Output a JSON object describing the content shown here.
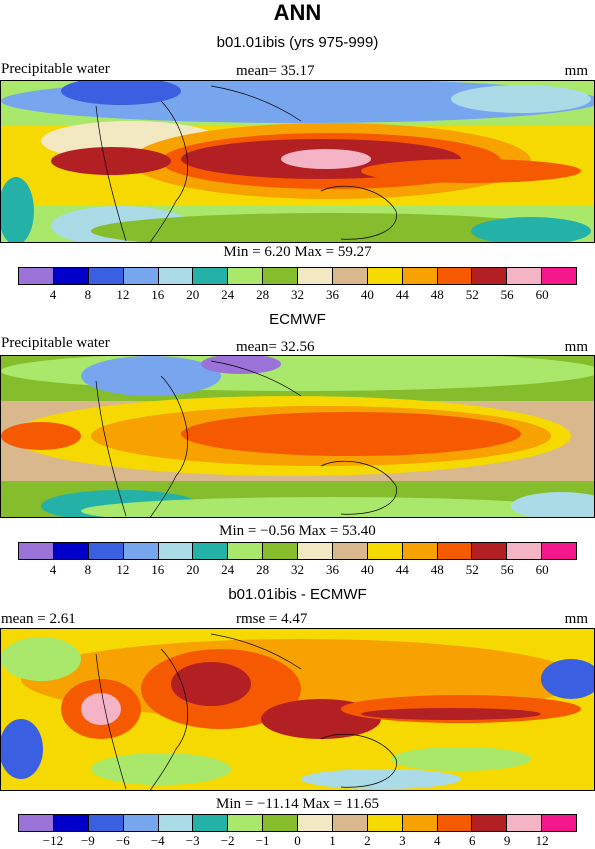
{
  "title": "ANN",
  "panels": [
    {
      "header": "b01.01ibis (yrs 975-999)",
      "left_label": "Precipitable water",
      "center_label": "mean=  35.17",
      "right_label": "mm",
      "stats": "Min =    6.20  Max =   59.27",
      "colorbar": {
        "colors": [
          "#9b73d8",
          "#0000c8",
          "#3a5fe0",
          "#78a6ee",
          "#aadbe6",
          "#24b2a8",
          "#a9e86a",
          "#85bd2c",
          "#f2e8c2",
          "#d8b88c",
          "#f5d900",
          "#f7a200",
          "#f55a00",
          "#b32024",
          "#f5b4c6",
          "#f5188c"
        ],
        "ticks": [
          "4",
          "8",
          "12",
          "16",
          "20",
          "24",
          "28",
          "32",
          "36",
          "40",
          "44",
          "48",
          "52",
          "56",
          "60"
        ]
      }
    },
    {
      "header": "ECMWF",
      "left_label": "Precipitable water",
      "center_label": "mean=  32.56",
      "right_label": "mm",
      "stats": "Min =   −0.56  Max =   53.40",
      "colorbar": {
        "colors": [
          "#9b73d8",
          "#0000c8",
          "#3a5fe0",
          "#78a6ee",
          "#aadbe6",
          "#24b2a8",
          "#a9e86a",
          "#85bd2c",
          "#f2e8c2",
          "#d8b88c",
          "#f5d900",
          "#f7a200",
          "#f55a00",
          "#b32024",
          "#f5b4c6",
          "#f5188c"
        ],
        "ticks": [
          "4",
          "8",
          "12",
          "16",
          "20",
          "24",
          "28",
          "32",
          "36",
          "40",
          "44",
          "48",
          "52",
          "56",
          "60"
        ]
      }
    },
    {
      "header": "b01.01ibis - ECMWF",
      "left_label": "mean =    2.61",
      "center_label": "rmse =    4.47",
      "right_label": "mm",
      "stats": "Min = −11.14  Max =   11.65",
      "colorbar": {
        "colors": [
          "#9b73d8",
          "#0000c8",
          "#3a5fe0",
          "#78a6ee",
          "#aadbe6",
          "#24b2a8",
          "#a9e86a",
          "#85bd2c",
          "#f2e8c2",
          "#d8b88c",
          "#f5d900",
          "#f7a200",
          "#f55a00",
          "#b32024",
          "#f5b4c6",
          "#f5188c"
        ],
        "ticks": [
          "−12",
          "−9",
          "−6",
          "−4",
          "−3",
          "−2",
          "−1",
          "0",
          "1",
          "2",
          "3",
          "4",
          "6",
          "9",
          "12"
        ]
      }
    }
  ]
}
